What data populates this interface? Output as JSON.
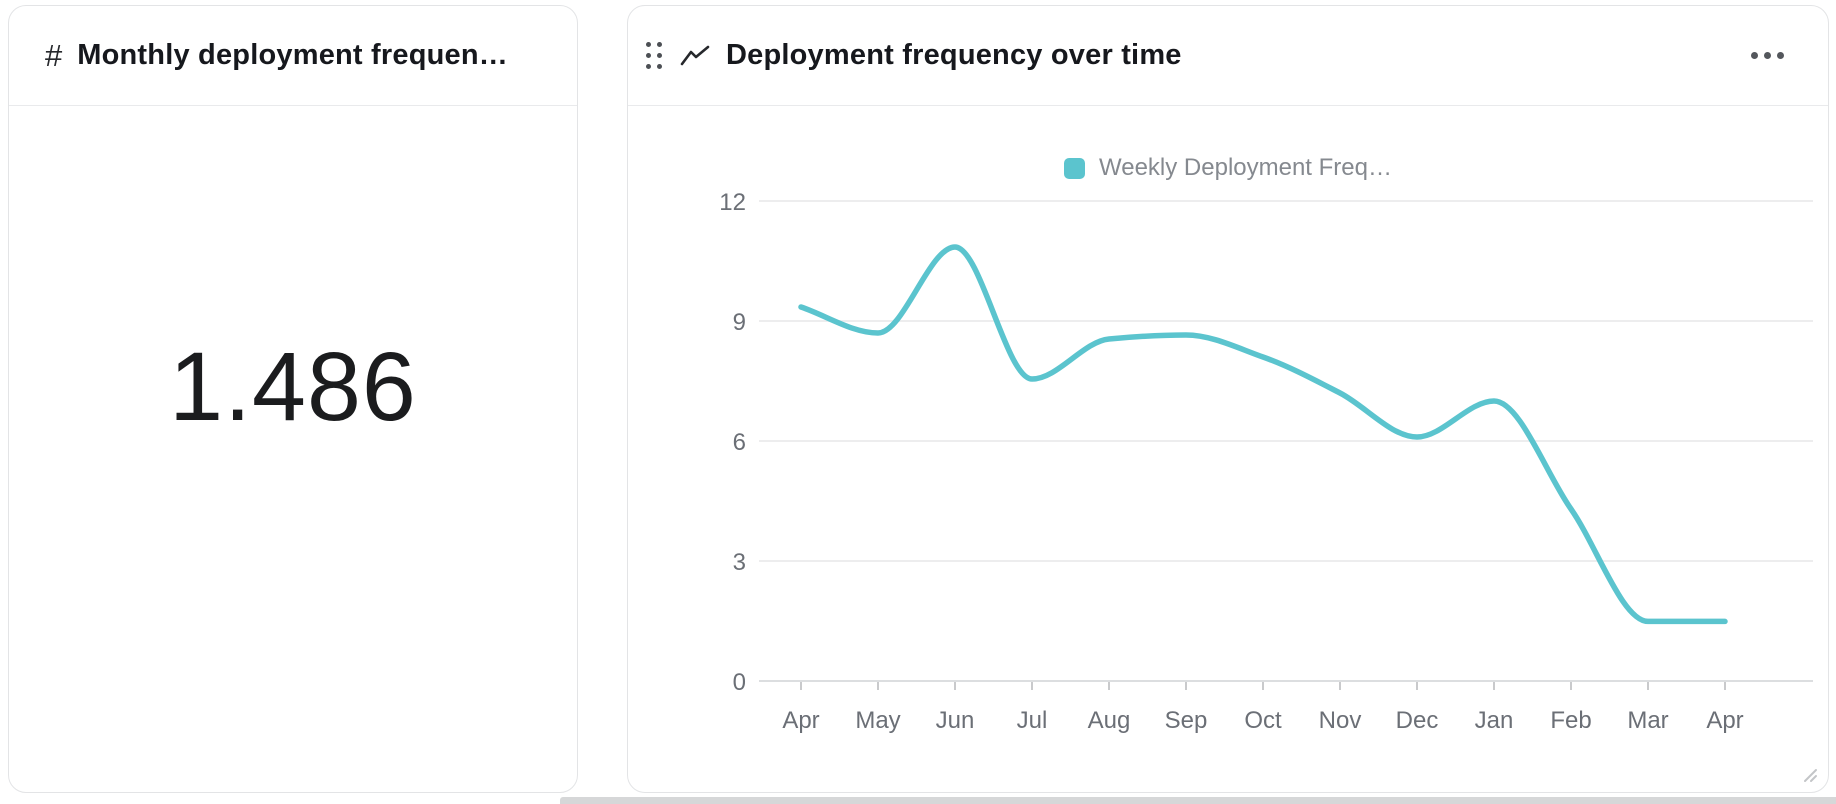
{
  "metric_card": {
    "icon": "#",
    "title": "Monthly deployment frequen…",
    "value": "1.486"
  },
  "chart_card": {
    "title": "Deployment frequency over time"
  },
  "chart_data": {
    "type": "line",
    "title": "Deployment frequency over time",
    "categories": [
      "Apr",
      "May",
      "Jun",
      "Jul",
      "Aug",
      "Sep",
      "Oct",
      "Nov",
      "Dec",
      "Jan",
      "Feb",
      "Mar",
      "Apr"
    ],
    "series": [
      {
        "name": "Weekly Deployment Freq…",
        "values": [
          9.35,
          8.7,
          10.85,
          7.55,
          8.55,
          8.65,
          8.1,
          7.2,
          6.1,
          7.0,
          4.3,
          1.49,
          1.49
        ]
      }
    ],
    "ylim": [
      0,
      12
    ],
    "yticks": [
      0,
      3,
      6,
      9,
      12
    ],
    "grid": true,
    "legend_position": "top",
    "line_color": "#5bc4ce",
    "smooth": true
  },
  "colors": {
    "accent_teal": "#5bc4ce",
    "grid_line": "#ededee",
    "axis_line": "#dcdee0",
    "tick_text": "#6b6f76",
    "legend_text": "#85898f"
  }
}
